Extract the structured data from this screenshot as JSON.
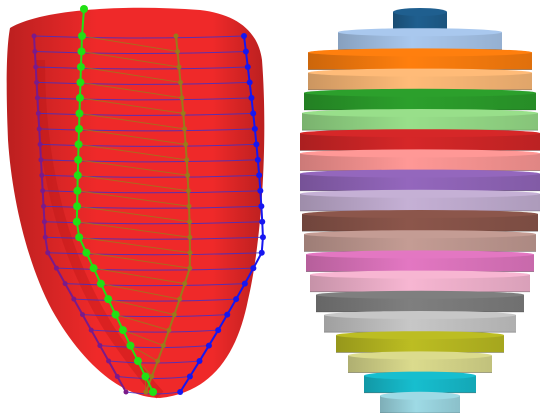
{
  "scene": {
    "background": "#ffffff",
    "left_model": {
      "fill": "#ee1e1e",
      "fill_dark": "#b81414",
      "ring_line_color": "#3a2fd0",
      "seam_colors": {
        "green": "#22e014",
        "blue": "#1616f0",
        "purple": "#7a1a8a",
        "olive": "#9a7a1a"
      },
      "ring_count": 24
    },
    "right_model": {
      "discs": [
        {
          "color": "#1f5f8f"
        },
        {
          "color": "#a9c8ee"
        },
        {
          "color": "#ff7f0e"
        },
        {
          "color": "#ffbb78"
        },
        {
          "color": "#2ca02c"
        },
        {
          "color": "#98df8a"
        },
        {
          "color": "#d62728"
        },
        {
          "color": "#ff9896"
        },
        {
          "color": "#9467bd"
        },
        {
          "color": "#c5b0d5"
        },
        {
          "color": "#8c564b"
        },
        {
          "color": "#c49c94"
        },
        {
          "color": "#e377c2"
        },
        {
          "color": "#f7b6d2"
        },
        {
          "color": "#7f7f7f"
        },
        {
          "color": "#c7c7c7"
        },
        {
          "color": "#bcbd22"
        },
        {
          "color": "#dbdb8d"
        },
        {
          "color": "#17becf"
        },
        {
          "color": "#9edae5"
        }
      ]
    }
  }
}
